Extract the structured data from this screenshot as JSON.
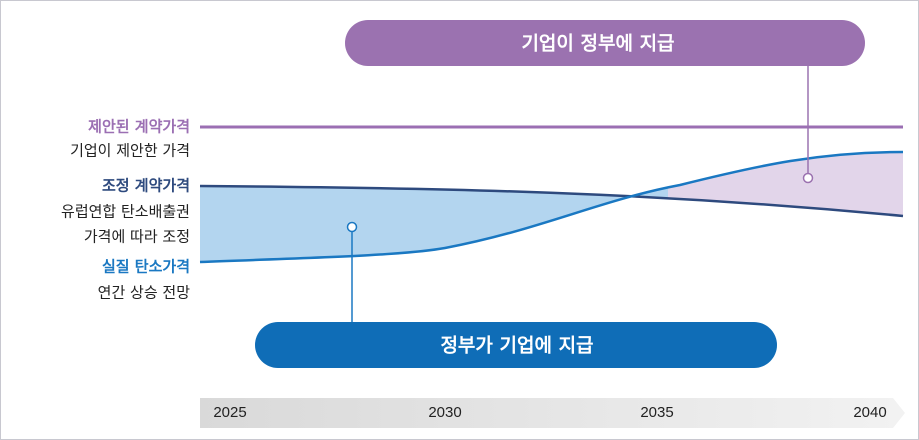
{
  "callouts": {
    "top": "기업이 정부에 지급",
    "bottom": "정부가 기업에 지급"
  },
  "labels": [
    {
      "title": "제안된 계약가격",
      "lines": [
        "기업이 제안한 가격"
      ]
    },
    {
      "title": "조정 계약가격",
      "lines": [
        "유럽연합  탄소배출권",
        "가격에 따라 조정"
      ]
    },
    {
      "title": "실질 탄소가격",
      "lines": [
        "연간 상승 전망"
      ]
    }
  ],
  "axis": {
    "ticks": [
      "2025",
      "2030",
      "2035",
      "2040"
    ]
  }
}
